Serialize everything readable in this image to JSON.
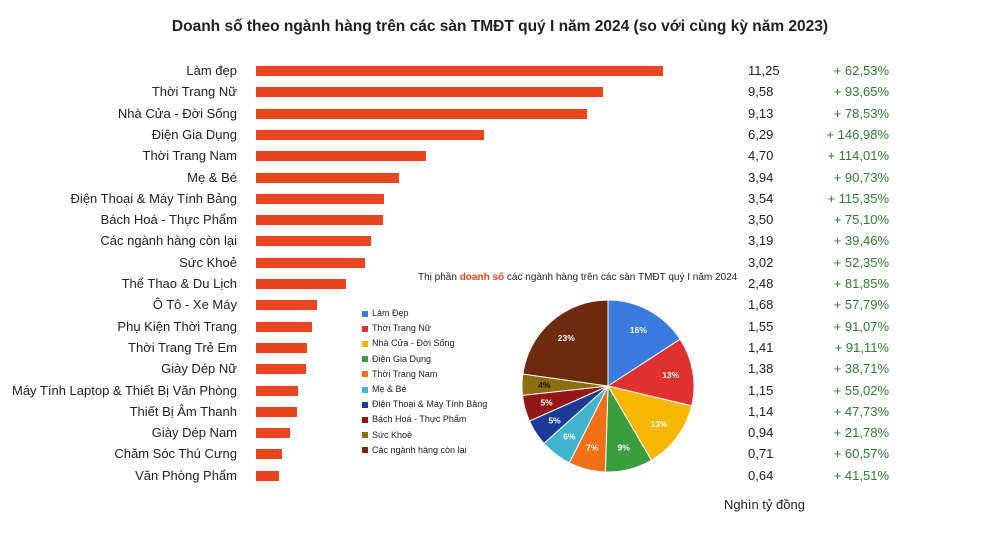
{
  "chart_data": [
    {
      "type": "bar",
      "title": "Doanh số theo ngành hàng trên các sàn TMĐT quý I năm 2024 (so với cùng kỳ năm 2023)",
      "unit_note": "Nghìn tỷ đồng",
      "categories": [
        "Làm đẹp",
        "Thời Trang Nữ",
        "Nhà Cửa - Đời Sống",
        "Điện Gia Dụng",
        "Thời Trang Nam",
        "Mẹ & Bé",
        "Điện Thoại & Máy Tính Bảng",
        "Bách Hoá - Thực Phẩm",
        "Các ngành hàng còn lại",
        "Sức Khoẻ",
        "Thể Thao & Du Lịch",
        "Ô Tô - Xe Máy",
        "Phụ Kiện Thời Trang",
        "Thời Trang Trẻ Em",
        "Giày Dép Nữ",
        "Máy Tính Laptop & Thiết Bị Văn Phòng",
        "Thiết Bị Âm Thanh",
        "Giày Dép Nam",
        "Chăm Sóc Thú Cưng",
        "Văn Phòng Phẩm"
      ],
      "values": [
        11.25,
        9.58,
        9.13,
        6.29,
        4.7,
        3.94,
        3.54,
        3.5,
        3.19,
        3.02,
        2.48,
        1.68,
        1.55,
        1.41,
        1.38,
        1.15,
        1.14,
        0.94,
        0.71,
        0.64
      ],
      "value_labels": [
        "11,25",
        "9,58",
        "9,13",
        "6,29",
        "4,70",
        "3,94",
        "3,54",
        "3,50",
        "3,19",
        "3,02",
        "2,48",
        "1,68",
        "1,55",
        "1,41",
        "1,38",
        "1,15",
        "1,14",
        "0,94",
        "0,71",
        "0,64"
      ],
      "change_labels": [
        "+ 62,53%",
        "+ 93,65%",
        "+ 78,53%",
        "+ 146,98%",
        "+ 114,01%",
        "+ 90,73%",
        "+ 115,35%",
        "+ 75,10%",
        "+ 39,46%",
        "+ 52,35%",
        "+ 81,85%",
        "+ 57,79%",
        "+ 91,07%",
        "+ 91,11%",
        "+ 38,71%",
        "+ 55,02%",
        "+ 47,73%",
        "+ 21,78%",
        "+ 60,57%",
        "+ 41,51%"
      ],
      "bar_color": "#e8461e",
      "change_color": "#2e7d32"
    },
    {
      "type": "pie",
      "title_parts": [
        "Thị phần ",
        "doanh số",
        " các ngành hàng trên các sàn TMĐT quý I năm 2024"
      ],
      "legend": [
        "Làm Đẹp",
        "Thời Trang Nữ",
        "Nhà Cửa - Đời Sống",
        "Điện Gia Dụng",
        "Thời Trang Nam",
        "Mẹ & Bé",
        "Điện Thoại & Máy Tính Bảng",
        "Bách Hoá - Thực Phẩm",
        "Sức Khoẻ",
        "Các ngành hàng còn lại"
      ],
      "values": [
        16,
        13,
        13,
        9,
        7,
        6,
        5,
        5,
        4,
        23
      ],
      "slice_labels": [
        "16%",
        "13%",
        "13%",
        "9%",
        "7%",
        "6%",
        "5%",
        "5%",
        "4%",
        "23%"
      ],
      "colors": [
        "#3a7be0",
        "#e03030",
        "#f5b800",
        "#3a9e3f",
        "#f07018",
        "#40b4d0",
        "#1a3c96",
        "#941616",
        "#8c6d0f",
        "#6e2a0c"
      ],
      "label_colors": [
        "#ffffff",
        "#ffffff",
        "#ffffff",
        "#ffffff",
        "#ffffff",
        "#ffffff",
        "#ffffff",
        "#ffffff",
        "#111111",
        "#ffffff"
      ]
    }
  ]
}
